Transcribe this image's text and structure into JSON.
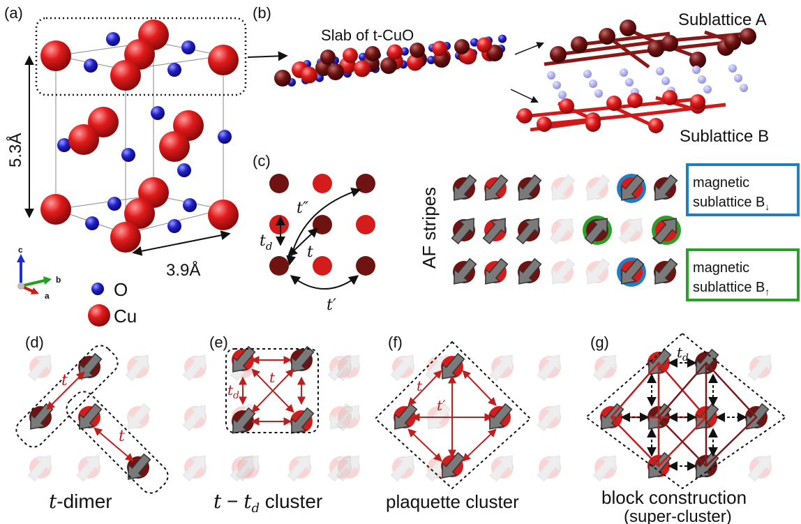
{
  "colors": {
    "cu": "#e01b1b",
    "cu_dark": "#6e1212",
    "oxygen": "#2020c8",
    "oxygen_light": "#9a9aea",
    "bond": "#c01e1e",
    "box_blue": "#1f7fc4",
    "box_green": "#2aa02a",
    "arrow_gray": "#777777",
    "faded": "#e0e0e0"
  },
  "panel_a": {
    "label": "(a)",
    "dim_c": "5.3Å",
    "dim_ab": "3.9Å",
    "legend_o": "O",
    "legend_cu": "Cu",
    "axis_c": "c",
    "axis_b": "b",
    "axis_a": "a"
  },
  "panel_b": {
    "label": "(b)",
    "slab_title": "Slab of t-CuO",
    "sublattice_a": "Sublattice A",
    "sublattice_b": "Sublattice B"
  },
  "panel_c": {
    "label": "(c)",
    "hop_t2": "t″",
    "hop_td": "t",
    "hop_td_sub": "d",
    "hop_t": "t",
    "hop_t1": "t′",
    "af_label": "AF stripes",
    "box_blue_line1": "magnetic",
    "box_blue_line2": "sublattice B",
    "box_blue_sub": "↓",
    "box_green_line1": "magnetic",
    "box_green_line2": "sublattice B",
    "box_green_sub": "↑"
  },
  "panel_d": {
    "label": "(d)",
    "hop": "t",
    "caption_it": "t",
    "caption_rest": "-dimer"
  },
  "panel_e": {
    "label": "(e)",
    "hop_t": "t",
    "hop_td": "t",
    "hop_td_sub": "d",
    "caption_t": "t",
    "caption_minus": " − ",
    "caption_td": "t",
    "caption_td_sub": "d",
    "caption_rest": " cluster"
  },
  "panel_f": {
    "label": "(f)",
    "hop_t": "t",
    "hop_t1": "t′",
    "caption": "plaquette cluster"
  },
  "panel_g": {
    "label": "(g)",
    "hop_td": "t",
    "hop_td_sub": "d",
    "caption_line1": "block construction",
    "caption_line2": "(super-cluster)"
  }
}
